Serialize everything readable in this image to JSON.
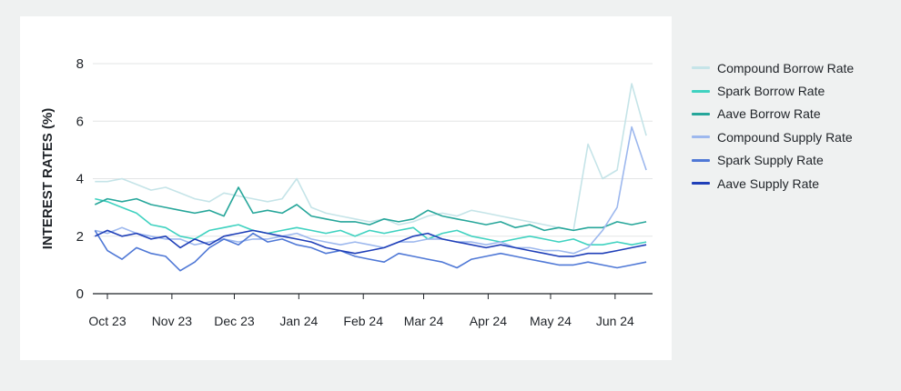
{
  "chart_data": {
    "type": "line",
    "title": "",
    "xlabel": "",
    "ylabel": "INTEREST RATES (%)",
    "ylim": [
      0,
      8
    ],
    "yticks": [
      0,
      2,
      4,
      6,
      8
    ],
    "xticks": [
      "Oct 23",
      "Nov 23",
      "Dec 23",
      "Jan 24",
      "Feb 24",
      "Mar 24",
      "Apr 24",
      "May 24",
      "Jun 24"
    ],
    "x_start": "Sep 23",
    "grid": "horizontal",
    "legend": "right",
    "x": [
      "2023-09-25",
      "2023-10-01",
      "2023-10-08",
      "2023-10-15",
      "2023-10-22",
      "2023-10-29",
      "2023-11-05",
      "2023-11-12",
      "2023-11-19",
      "2023-11-26",
      "2023-12-03",
      "2023-12-10",
      "2023-12-17",
      "2023-12-24",
      "2023-12-31",
      "2024-01-07",
      "2024-01-14",
      "2024-01-21",
      "2024-01-28",
      "2024-02-04",
      "2024-02-11",
      "2024-02-18",
      "2024-02-25",
      "2024-03-03",
      "2024-03-10",
      "2024-03-17",
      "2024-03-24",
      "2024-03-31",
      "2024-04-07",
      "2024-04-14",
      "2024-04-21",
      "2024-04-28",
      "2024-05-05",
      "2024-05-12",
      "2024-05-19",
      "2024-05-26",
      "2024-06-02",
      "2024-06-09",
      "2024-06-16"
    ],
    "series": [
      {
        "name": "Compound Borrow Rate",
        "color": "#c5e4e8",
        "values": [
          3.9,
          3.9,
          4.0,
          3.8,
          3.6,
          3.7,
          3.5,
          3.3,
          3.2,
          3.5,
          3.4,
          3.3,
          3.2,
          3.3,
          4.0,
          3.0,
          2.8,
          2.7,
          2.6,
          2.5,
          2.6,
          2.4,
          2.5,
          2.7,
          2.8,
          2.7,
          2.9,
          2.8,
          2.7,
          2.6,
          2.5,
          2.4,
          2.3,
          2.2,
          5.2,
          4.0,
          4.3,
          7.3,
          5.5
        ]
      },
      {
        "name": "Spark Borrow Rate",
        "color": "#3fd2c0",
        "values": [
          3.3,
          3.2,
          3.0,
          2.8,
          2.4,
          2.3,
          2.0,
          1.9,
          2.2,
          2.3,
          2.4,
          2.2,
          2.1,
          2.2,
          2.3,
          2.2,
          2.1,
          2.2,
          2.0,
          2.2,
          2.1,
          2.2,
          2.3,
          1.9,
          2.1,
          2.2,
          2.0,
          1.9,
          1.8,
          1.9,
          2.0,
          1.9,
          1.8,
          1.9,
          1.7,
          1.7,
          1.8,
          1.7,
          1.8
        ]
      },
      {
        "name": "Aave Borrow Rate",
        "color": "#26a69a",
        "values": [
          3.1,
          3.3,
          3.2,
          3.3,
          3.1,
          3.0,
          2.9,
          2.8,
          2.9,
          2.7,
          3.7,
          2.8,
          2.9,
          2.8,
          3.1,
          2.7,
          2.6,
          2.5,
          2.5,
          2.4,
          2.6,
          2.5,
          2.6,
          2.9,
          2.7,
          2.6,
          2.5,
          2.4,
          2.5,
          2.3,
          2.4,
          2.2,
          2.3,
          2.2,
          2.3,
          2.3,
          2.5,
          2.4,
          2.5
        ]
      },
      {
        "name": "Compound Supply Rate",
        "color": "#9db8ee",
        "values": [
          2.2,
          2.1,
          2.3,
          2.1,
          2.0,
          1.9,
          1.9,
          1.7,
          1.8,
          1.9,
          1.8,
          1.9,
          1.9,
          2.0,
          2.1,
          1.9,
          1.8,
          1.7,
          1.8,
          1.7,
          1.6,
          1.8,
          1.8,
          1.9,
          1.9,
          1.8,
          1.8,
          1.7,
          1.8,
          1.6,
          1.6,
          1.5,
          1.5,
          1.4,
          1.6,
          2.2,
          3.0,
          5.8,
          4.3
        ]
      },
      {
        "name": "Spark Supply Rate",
        "color": "#4f78d6",
        "values": [
          2.2,
          1.5,
          1.2,
          1.6,
          1.4,
          1.3,
          0.8,
          1.1,
          1.6,
          1.9,
          1.7,
          2.1,
          1.8,
          1.9,
          1.7,
          1.6,
          1.4,
          1.5,
          1.3,
          1.2,
          1.1,
          1.4,
          1.3,
          1.2,
          1.1,
          0.9,
          1.2,
          1.3,
          1.4,
          1.3,
          1.2,
          1.1,
          1.0,
          1.0,
          1.1,
          1.0,
          0.9,
          1.0,
          1.1
        ]
      },
      {
        "name": "Aave Supply Rate",
        "color": "#1f3fb8",
        "values": [
          2.0,
          2.2,
          2.0,
          2.1,
          1.9,
          2.0,
          1.6,
          1.9,
          1.7,
          2.0,
          2.1,
          2.2,
          2.1,
          2.0,
          1.9,
          1.8,
          1.6,
          1.5,
          1.4,
          1.5,
          1.6,
          1.8,
          2.0,
          2.1,
          1.9,
          1.8,
          1.7,
          1.6,
          1.7,
          1.6,
          1.5,
          1.4,
          1.3,
          1.3,
          1.4,
          1.4,
          1.5,
          1.6,
          1.7
        ]
      }
    ]
  },
  "colors": {
    "background": "#eff1f1",
    "card": "#ffffff",
    "grid": "#e3e5e6",
    "axis": "#1f2328"
  }
}
